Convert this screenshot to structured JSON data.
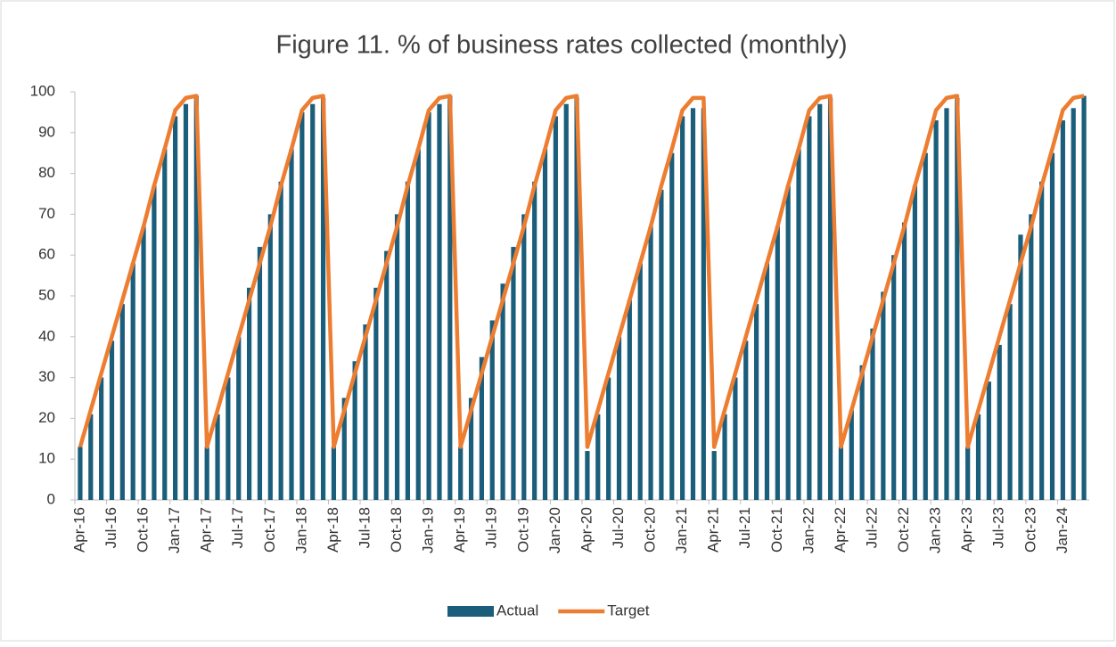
{
  "chart_data": {
    "type": "bar_line",
    "title": "Figure 11. % of business rates collected (monthly)",
    "categories": [
      "Apr-16",
      null,
      null,
      "Jul-16",
      null,
      null,
      "Oct-16",
      null,
      null,
      "Jan-17",
      null,
      null,
      "Apr-17",
      null,
      null,
      "Jul-17",
      null,
      null,
      "Oct-17",
      null,
      null,
      "Jan-18",
      null,
      null,
      "Apr-18",
      null,
      null,
      "Jul-18",
      null,
      null,
      "Oct-18",
      null,
      null,
      "Jan-19",
      null,
      null,
      "Apr-19",
      null,
      null,
      "Jul-19",
      null,
      null,
      "Oct-19",
      null,
      null,
      "Jan-20",
      null,
      null,
      "Apr-20",
      null,
      null,
      "Jul-20",
      null,
      null,
      "Oct-20",
      null,
      null,
      "Jan-21",
      null,
      null,
      "Apr-21",
      null,
      null,
      "Jul-21",
      null,
      null,
      "Oct-21",
      null,
      null,
      "Jan-22",
      null,
      null,
      "Apr-22",
      null,
      null,
      "Jul-22",
      null,
      null,
      "Oct-22",
      null,
      null,
      "Jan-23",
      null,
      null,
      "Apr-23",
      null,
      null,
      "Jul-23",
      null,
      null,
      "Oct-23",
      null,
      null,
      "Jan-24",
      null,
      null
    ],
    "series": [
      {
        "name": "Actual",
        "kind": "bar",
        "color": "#1b5e7b",
        "values": [
          13,
          21,
          30,
          39,
          48,
          58,
          67,
          77,
          86,
          94,
          97,
          99,
          13,
          21,
          30,
          40,
          52,
          62,
          70,
          78,
          86,
          95,
          97,
          98.5,
          13,
          25,
          34,
          43,
          52,
          61,
          70,
          78,
          86,
          95,
          97,
          99,
          13,
          25,
          35,
          44,
          53,
          62,
          70,
          78,
          86,
          94,
          97,
          98.5,
          12,
          21,
          30,
          40,
          49,
          58,
          67,
          76,
          85,
          94,
          96,
          96,
          12,
          21,
          30,
          39,
          48,
          58,
          67,
          77,
          86,
          94,
          97,
          98.5,
          13,
          22,
          33,
          42,
          51,
          60,
          68,
          77,
          85,
          93,
          96,
          98.5,
          13,
          21,
          29,
          38,
          48,
          65,
          70,
          78,
          85,
          93,
          96,
          99
        ]
      },
      {
        "name": "Target",
        "kind": "line",
        "color": "#ed7d31",
        "values": [
          13,
          22,
          31,
          40,
          49,
          58,
          67,
          77,
          86,
          95.5,
          98.5,
          99,
          13,
          22,
          31,
          40,
          49,
          58,
          67,
          77,
          86,
          95.5,
          98.5,
          99,
          13,
          22,
          31,
          40,
          49,
          58,
          67,
          77,
          86,
          95.5,
          98.5,
          99,
          13,
          22,
          31,
          40,
          49,
          58,
          67,
          77,
          86,
          95.5,
          98.5,
          99,
          13,
          22,
          31,
          40,
          49,
          58,
          67,
          77,
          86,
          95.5,
          98.5,
          98.5,
          13,
          22,
          31,
          40,
          49,
          58,
          67,
          77,
          86,
          95.5,
          98.5,
          99,
          13,
          22,
          31,
          40,
          49,
          58,
          67,
          77,
          86,
          95.5,
          98.5,
          99,
          13,
          22,
          31,
          40,
          49,
          58,
          67,
          77,
          86,
          95.5,
          98.5,
          99
        ]
      }
    ],
    "ylim": [
      0,
      100
    ],
    "yticks": [
      0,
      10,
      20,
      30,
      40,
      50,
      60,
      70,
      80,
      90,
      100
    ],
    "legend": "bottom"
  }
}
